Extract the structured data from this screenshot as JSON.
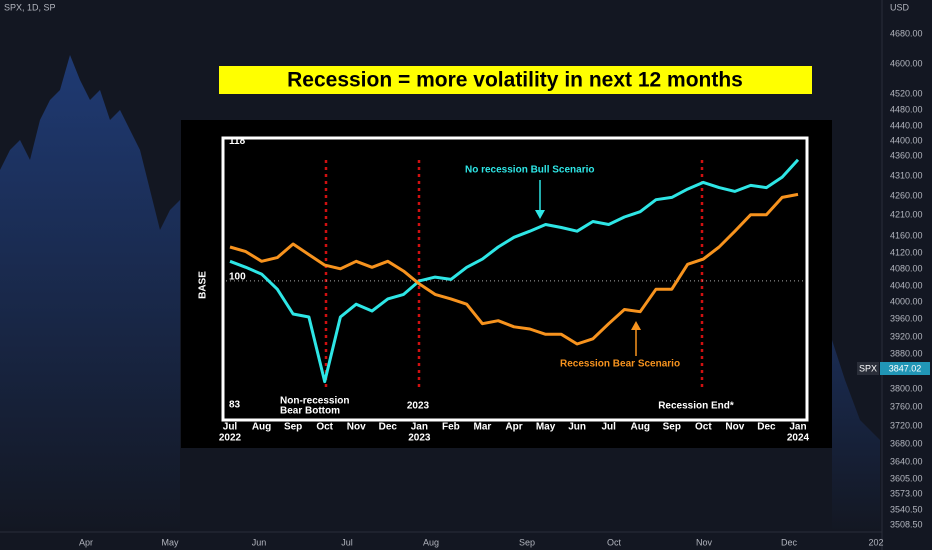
{
  "header": {
    "symbol": "SPX, 1D, SP",
    "currency": "USD"
  },
  "price_axis": [
    "4680.00",
    "4600.00",
    "4520.00",
    "4480.00",
    "4440.00",
    "4400.00",
    "4360.00",
    "4310.00",
    "4260.00",
    "4210.00",
    "4160.00",
    "4120.00",
    "4080.00",
    "4040.00",
    "4000.00",
    "3960.00",
    "3920.00",
    "3880.00",
    "3800.00",
    "3760.00",
    "3720.00",
    "3680.00",
    "3640.00",
    "3605.00",
    "3573.00",
    "3540.50",
    "3508.50"
  ],
  "price_tag": {
    "symbol": "SPX",
    "price": "3847.02"
  },
  "time_axis": [
    "Apr",
    "May",
    "Jun",
    "Jul",
    "Aug",
    "Sep",
    "Oct",
    "Nov",
    "Dec",
    "202"
  ],
  "banner": "Recession = more volatility in next 12 months",
  "chart": {
    "type": "line",
    "y_label": "BASE",
    "categories": [
      "Jul",
      null,
      "Aug",
      null,
      "Sep",
      null,
      "Oct",
      null,
      "Nov",
      null,
      "Dec",
      null,
      "Jan",
      null,
      "Feb",
      null,
      "Mar",
      null,
      "Apr",
      null,
      "May",
      null,
      "Jun",
      null,
      "Jul",
      null,
      "Aug",
      null,
      "Sep",
      null,
      "Oct",
      null,
      "Nov",
      null,
      "Dec",
      null,
      "Jan"
    ],
    "years": [
      "2022",
      null,
      null,
      null,
      null,
      null,
      null,
      null,
      null,
      null,
      null,
      null,
      "2023",
      null,
      null,
      null,
      null,
      null,
      null,
      null,
      null,
      null,
      null,
      null,
      null,
      null,
      null,
      null,
      null,
      null,
      null,
      null,
      null,
      null,
      null,
      null,
      "2024"
    ],
    "ylim": [
      81.5,
      119
    ],
    "yticks": [
      83,
      100,
      118
    ],
    "reference_line": 100,
    "series": [
      {
        "name": "No recession Bull Scenario",
        "color": "#2ee6e6",
        "values": [
          102.6,
          101.8,
          100.9,
          98.9,
          95.6,
          95.2,
          86.6,
          95.2,
          96.9,
          96.0,
          97.6,
          98.2,
          100,
          100.5,
          100.2,
          101.8,
          102.9,
          104.5,
          105.8,
          106.6,
          107.5,
          107.1,
          106.6,
          107.9,
          107.5,
          108.5,
          109.2,
          110.8,
          111.1,
          112.2,
          113.1,
          112.4,
          111.9,
          112.7,
          112.4,
          113.8,
          116.1
        ]
      },
      {
        "name": "Recession Bear Scenario",
        "color": "#f7931e",
        "values": [
          104.5,
          103.9,
          102.6,
          103.1,
          104.9,
          103.5,
          102.1,
          101.6,
          102.6,
          101.8,
          102.6,
          101.3,
          99.6,
          98.2,
          97.6,
          96.9,
          94.3,
          94.7,
          93.9,
          93.6,
          92.9,
          92.9,
          91.6,
          92.3,
          94.3,
          96.2,
          95.9,
          98.9,
          98.9,
          102.2,
          102.9,
          104.5,
          106.6,
          108.8,
          108.8,
          111.1,
          111.5
        ]
      }
    ],
    "annotations": [
      "Non-recession",
      "Bear Bottom",
      "2023",
      "Recession End*"
    ]
  }
}
